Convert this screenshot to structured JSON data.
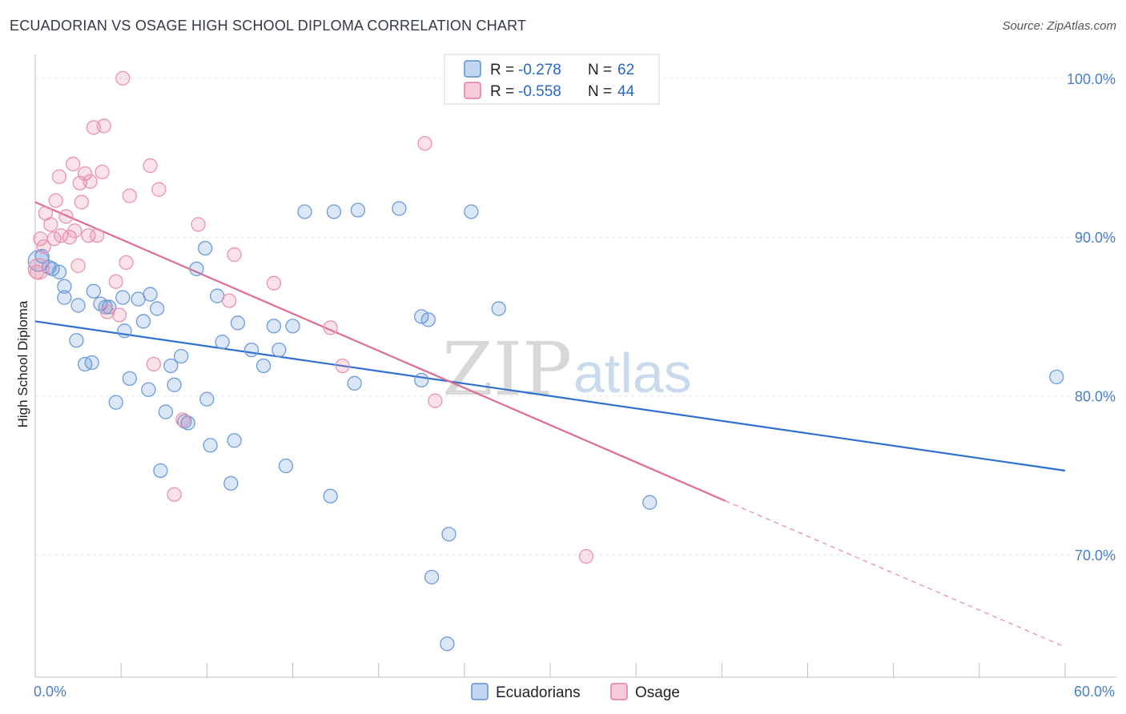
{
  "header": {
    "title": "ECUADORIAN VS OSAGE HIGH SCHOOL DIPLOMA CORRELATION CHART",
    "source": "Source: ZipAtlas.com"
  },
  "watermark": {
    "zip": "ZIP",
    "atlas": "atlas"
  },
  "legend": {
    "rows": [
      {
        "r_label": "R = ",
        "r_value": "-0.278",
        "n_label": "N = ",
        "n_value": "62",
        "color": "#5b8fd6"
      },
      {
        "r_label": "R = ",
        "r_value": "-0.558",
        "n_label": "N = ",
        "n_value": "44",
        "color": "#e6799d"
      }
    ]
  },
  "bottom_legend": {
    "items": [
      {
        "label": "Ecuadorians",
        "color": "#5b8fd6"
      },
      {
        "label": "Osage",
        "color": "#e6799d"
      }
    ]
  },
  "chart_data": {
    "type": "scatter",
    "title": "ECUADORIAN VS OSAGE HIGH SCHOOL DIPLOMA CORRELATION CHART",
    "xlabel": "",
    "ylabel": "High School Diploma",
    "xlim": [
      0,
      60
    ],
    "ylim": [
      62.3,
      101.5
    ],
    "x_tick_labels": [
      "0.0%",
      "60.0%"
    ],
    "y_ticks": [
      70,
      80,
      90,
      100
    ],
    "y_tick_labels": [
      "70.0%",
      "80.0%",
      "90.0%",
      "100.0%"
    ],
    "grid": true,
    "legend_position": "top-center",
    "series": [
      {
        "name": "Ecuadorians",
        "color": "#5b8fd6",
        "trend": {
          "x": [
            0,
            60
          ],
          "y": [
            84.7,
            75.3
          ]
        },
        "points": [
          [
            0.4,
            88.8
          ],
          [
            0.8,
            88.1
          ],
          [
            1.0,
            88.0
          ],
          [
            1.4,
            87.8
          ],
          [
            1.7,
            86.9
          ],
          [
            1.7,
            86.2
          ],
          [
            2.5,
            85.7
          ],
          [
            2.4,
            83.5
          ],
          [
            2.9,
            82.0
          ],
          [
            3.3,
            82.1
          ],
          [
            3.4,
            86.6
          ],
          [
            3.8,
            85.8
          ],
          [
            4.1,
            85.6
          ],
          [
            4.3,
            85.6
          ],
          [
            4.7,
            79.6
          ],
          [
            5.1,
            86.2
          ],
          [
            5.2,
            84.1
          ],
          [
            5.5,
            81.1
          ],
          [
            6.0,
            86.1
          ],
          [
            6.3,
            84.7
          ],
          [
            6.6,
            80.4
          ],
          [
            6.7,
            86.4
          ],
          [
            7.1,
            85.5
          ],
          [
            7.3,
            75.3
          ],
          [
            7.6,
            79.0
          ],
          [
            7.9,
            81.9
          ],
          [
            8.1,
            80.7
          ],
          [
            8.5,
            82.5
          ],
          [
            8.9,
            78.3
          ],
          [
            8.7,
            78.4
          ],
          [
            9.4,
            88.0
          ],
          [
            9.9,
            89.3
          ],
          [
            10.0,
            79.8
          ],
          [
            10.2,
            76.9
          ],
          [
            10.6,
            86.3
          ],
          [
            10.9,
            83.4
          ],
          [
            11.4,
            74.5
          ],
          [
            11.6,
            77.2
          ],
          [
            11.8,
            84.6
          ],
          [
            12.6,
            82.9
          ],
          [
            13.3,
            81.9
          ],
          [
            13.9,
            84.4
          ],
          [
            14.2,
            82.9
          ],
          [
            14.6,
            75.6
          ],
          [
            15.0,
            84.4
          ],
          [
            15.7,
            91.6
          ],
          [
            17.4,
            91.6
          ],
          [
            17.2,
            73.7
          ],
          [
            18.8,
            91.7
          ],
          [
            18.6,
            80.8
          ],
          [
            21.2,
            91.8
          ],
          [
            22.5,
            85.0
          ],
          [
            22.5,
            81.0
          ],
          [
            22.9,
            84.8
          ],
          [
            23.1,
            68.6
          ],
          [
            24.0,
            64.4
          ],
          [
            24.1,
            71.3
          ],
          [
            25.4,
            91.6
          ],
          [
            27.0,
            85.5
          ],
          [
            35.8,
            73.3
          ],
          [
            59.5,
            81.2
          ],
          [
            0.2,
            88.5
          ]
        ]
      },
      {
        "name": "Osage",
        "color": "#e6799d",
        "trend": {
          "x": [
            0,
            40.2
          ],
          "y": [
            92.2,
            73.4
          ]
        },
        "trend_dashed": {
          "x": [
            40.2,
            60
          ],
          "y": [
            73.4,
            64.2
          ]
        },
        "points": [
          [
            0.1,
            87.8
          ],
          [
            0.3,
            89.9
          ],
          [
            0.5,
            89.4
          ],
          [
            0.6,
            91.5
          ],
          [
            0.9,
            90.8
          ],
          [
            1.1,
            89.9
          ],
          [
            1.2,
            92.3
          ],
          [
            1.4,
            93.8
          ],
          [
            1.5,
            90.1
          ],
          [
            1.8,
            91.3
          ],
          [
            2.0,
            90.0
          ],
          [
            2.2,
            94.6
          ],
          [
            2.3,
            90.4
          ],
          [
            2.5,
            88.2
          ],
          [
            2.6,
            93.4
          ],
          [
            2.7,
            92.2
          ],
          [
            2.9,
            94.0
          ],
          [
            3.1,
            90.1
          ],
          [
            3.2,
            93.5
          ],
          [
            3.4,
            96.9
          ],
          [
            3.6,
            90.1
          ],
          [
            3.9,
            94.1
          ],
          [
            4.0,
            97.0
          ],
          [
            4.2,
            85.3
          ],
          [
            4.7,
            87.2
          ],
          [
            4.9,
            85.1
          ],
          [
            5.1,
            100.0
          ],
          [
            5.3,
            88.4
          ],
          [
            5.5,
            92.6
          ],
          [
            6.7,
            94.5
          ],
          [
            6.9,
            82.0
          ],
          [
            7.2,
            93.0
          ],
          [
            8.1,
            73.8
          ],
          [
            8.6,
            78.5
          ],
          [
            9.5,
            90.8
          ],
          [
            11.3,
            86.0
          ],
          [
            11.6,
            88.9
          ],
          [
            13.9,
            87.1
          ],
          [
            17.2,
            84.3
          ],
          [
            17.9,
            81.9
          ],
          [
            22.7,
            95.9
          ],
          [
            23.3,
            79.7
          ],
          [
            32.1,
            69.9
          ],
          [
            0.2,
            88.0
          ]
        ]
      }
    ]
  }
}
